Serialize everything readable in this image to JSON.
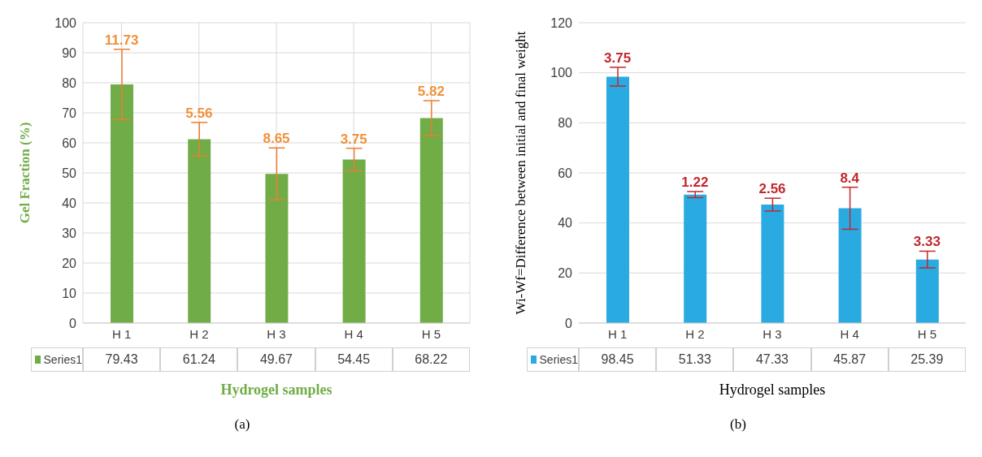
{
  "chart_data": [
    {
      "type": "bar",
      "xlabel": "Hydrogel samples",
      "ylabel": "Gel Fraction (%)",
      "categories": [
        "H 1",
        "H 2",
        "H 3",
        "H 4",
        "H 5"
      ],
      "series": [
        {
          "name": "Series1",
          "color": "#70ad47",
          "values": [
            79.43,
            61.24,
            49.67,
            54.45,
            68.22
          ],
          "errors": [
            11.73,
            5.56,
            8.65,
            3.75,
            5.82
          ]
        }
      ],
      "ylim": [
        0,
        100
      ],
      "yticks": [
        0,
        10,
        20,
        30,
        40,
        50,
        60,
        70,
        80,
        90,
        100
      ],
      "grid": true,
      "legend": "bottom",
      "data_labels": true,
      "annotations": [
        {
          "text": "11.73",
          "x": "H 1",
          "y": 91.16
        },
        {
          "text": "5.56",
          "x": "H 2",
          "y": 66.8
        },
        {
          "text": "8.65",
          "x": "H 3",
          "y": 58.32
        },
        {
          "text": "3.75",
          "x": "H 4",
          "y": 58.2
        },
        {
          "text": "5.82",
          "x": "H 5",
          "y": 74.04
        },
        "(a)"
      ]
    },
    {
      "type": "bar",
      "xlabel": "Hydrogel samples",
      "ylabel": "Wi-Wf=Difference between initial and final weight",
      "categories": [
        "H 1",
        "H 2",
        "H 3",
        "H 4",
        "H 5"
      ],
      "series": [
        {
          "name": "Series1",
          "color": "#29abe2",
          "values": [
            98.45,
            51.33,
            47.33,
            45.87,
            25.39
          ],
          "errors": [
            3.75,
            1.22,
            2.56,
            8.4,
            3.33
          ]
        }
      ],
      "ylim": [
        0,
        120
      ],
      "yticks": [
        0,
        20,
        40,
        60,
        80,
        100,
        120
      ],
      "grid": "y",
      "legend": "bottom",
      "data_labels": true,
      "annotations": [
        {
          "text": "3.75",
          "x": "H 1",
          "y": 102.2
        },
        {
          "text": "1.22",
          "x": "H 2",
          "y": 52.55
        },
        {
          "text": "2.56",
          "x": "H 3",
          "y": 49.89
        },
        {
          "text": "8.4",
          "x": "H 4",
          "y": 54.27
        },
        {
          "text": "3.33",
          "x": "H 5",
          "y": 28.72
        },
        "(b)"
      ]
    }
  ]
}
